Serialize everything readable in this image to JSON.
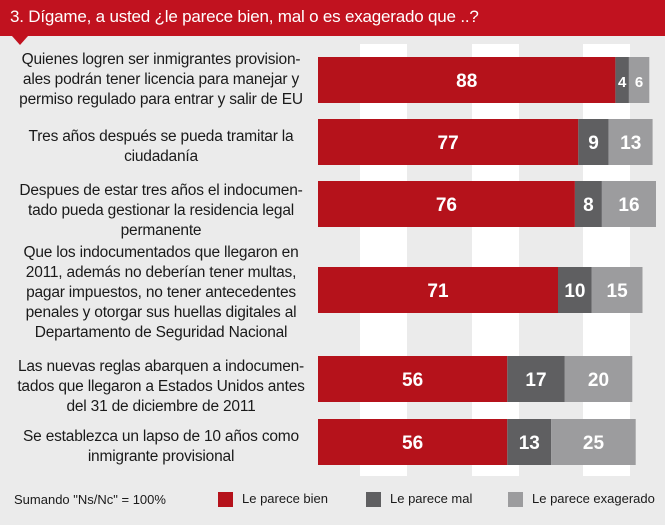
{
  "title": "3. Dígame, a usted ¿le parece bien, mal o es exagerado que ..?",
  "footnote": "Sumando \"Ns/Nc\" = 100%",
  "colors": {
    "header": "#c1121f",
    "bien": "#b5121b",
    "mal": "#5f5f61",
    "exagerado": "#9c9c9e",
    "column_stripe": "#ffffff"
  },
  "chart_data": {
    "type": "bar",
    "stacked": true,
    "orientation": "horizontal",
    "categories": [
      "Quienes logren ser inmigrantes provisionales podrán tener licencia para manejar y permiso regulado para entrar y salir de EU",
      "Tres años después se pueda tramitar la ciudadanía",
      "Despues de estar tres años el indocumentado pueda gestionar la residencia legal permanente",
      "Que los indocumentados que llegaron en 2011, además no deberían tener multas, pagar impuestos, no tener antecedentes penales y otorgar sus huellas digitales al Departamento de Seguridad Nacional",
      "Las nuevas reglas abarquen a indocumentados que llegaron a Estados Unidos antes del 31 de diciembre de 2011",
      "Se establezca un lapso de 10 años como inmigrante provisional"
    ],
    "series": [
      {
        "name": "Le parece bien",
        "values": [
          88,
          77,
          76,
          71,
          56,
          56
        ]
      },
      {
        "name": "Le parece mal",
        "values": [
          4,
          9,
          8,
          10,
          17,
          13
        ]
      },
      {
        "name": "Le parece exagerado",
        "values": [
          6,
          13,
          16,
          15,
          20,
          25
        ]
      }
    ],
    "xlim": [
      0,
      100
    ],
    "legend_position": "bottom"
  },
  "row_labels": [
    [
      "Quienes logren ser inmigrantes provision-",
      "ales podrán tener licencia para manejar y",
      "permiso regulado para entrar y salir de EU"
    ],
    [
      "Tres años después se pueda tramitar la",
      "ciudadanía"
    ],
    [
      "Despues de estar tres años el indocumen-",
      "tado pueda gestionar la residencia legal",
      "permanente"
    ],
    [
      "Que los indocumentados que llegaron en",
      "2011, además no deberían tener multas,",
      "pagar impuestos, no tener antecedentes",
      "penales y otorgar sus huellas digitales al",
      "Departamento de Seguridad Nacional"
    ],
    [
      "Las nuevas reglas abarquen a indocumen-",
      "tados que llegaron a Estados Unidos antes",
      "del 31 de diciembre de 2011"
    ],
    [
      "Se establezca un lapso de 10 años como",
      "inmigrante provisional"
    ]
  ]
}
